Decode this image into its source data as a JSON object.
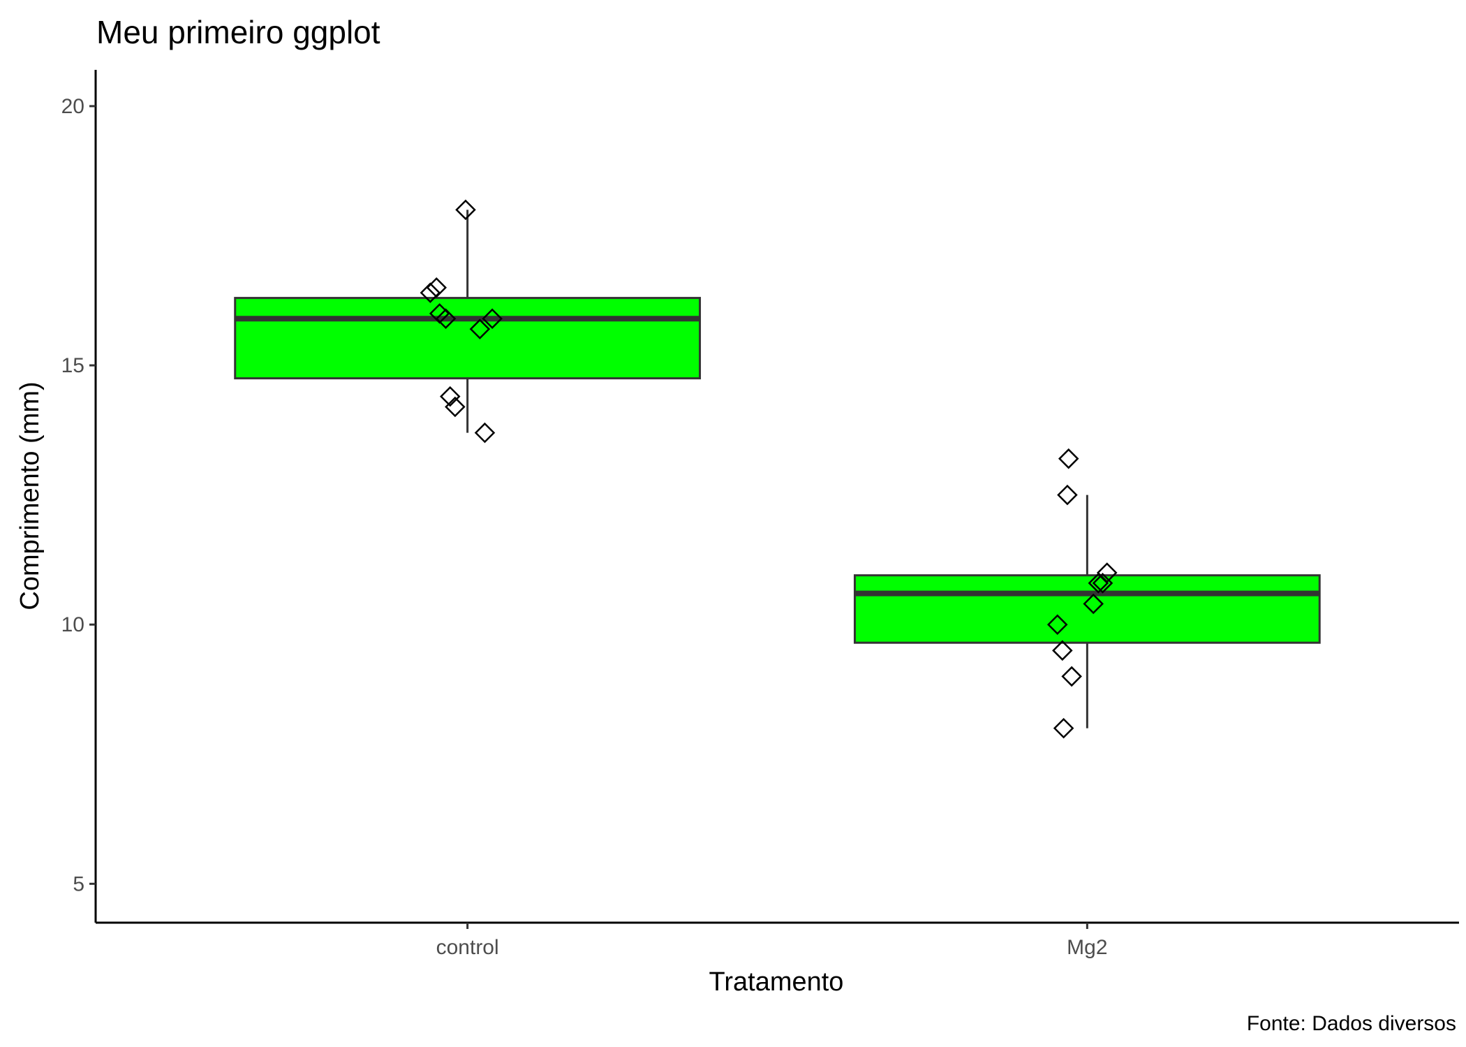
{
  "chart_data": {
    "type": "boxplot",
    "title": "Meu primeiro ggplot",
    "xlabel": "Tratamento",
    "ylabel": "Comprimento (mm)",
    "caption": "Fonte: Dados diversos",
    "ylim": [
      4.25,
      20.7
    ],
    "yticks": [
      5,
      10,
      15,
      20
    ],
    "categories": [
      "control",
      "Mg2"
    ],
    "box_fill": "#00ff00",
    "box_line": "#333333",
    "grid": false,
    "boxes": [
      {
        "category": "control",
        "lower_whisker": 13.7,
        "q1": 14.75,
        "median": 15.9,
        "q3": 16.3,
        "upper_whisker": 18.0
      },
      {
        "category": "Mg2",
        "lower_whisker": 8.0,
        "q1": 9.65,
        "median": 10.6,
        "q3": 10.95,
        "upper_whisker": 12.5
      }
    ],
    "points": [
      {
        "category": "control",
        "jitter": -0.05,
        "y": 16.5
      },
      {
        "category": "control",
        "jitter": -0.06,
        "y": 16.4
      },
      {
        "category": "control",
        "jitter": -0.045,
        "y": 16.0
      },
      {
        "category": "control",
        "jitter": -0.035,
        "y": 15.9
      },
      {
        "category": "control",
        "jitter": 0.02,
        "y": 15.7
      },
      {
        "category": "control",
        "jitter": 0.04,
        "y": 15.9
      },
      {
        "category": "control",
        "jitter": -0.003,
        "y": 18.0
      },
      {
        "category": "control",
        "jitter": -0.028,
        "y": 14.4
      },
      {
        "category": "control",
        "jitter": -0.02,
        "y": 14.2
      },
      {
        "category": "control",
        "jitter": 0.028,
        "y": 13.7
      },
      {
        "category": "Mg2",
        "jitter": -0.03,
        "y": 13.2
      },
      {
        "category": "Mg2",
        "jitter": -0.032,
        "y": 12.5
      },
      {
        "category": "Mg2",
        "jitter": 0.032,
        "y": 11.0
      },
      {
        "category": "Mg2",
        "jitter": 0.018,
        "y": 10.8
      },
      {
        "category": "Mg2",
        "jitter": 0.025,
        "y": 10.8
      },
      {
        "category": "Mg2",
        "jitter": 0.01,
        "y": 10.4
      },
      {
        "category": "Mg2",
        "jitter": -0.048,
        "y": 10.0
      },
      {
        "category": "Mg2",
        "jitter": -0.04,
        "y": 9.5
      },
      {
        "category": "Mg2",
        "jitter": -0.025,
        "y": 9.0
      },
      {
        "category": "Mg2",
        "jitter": -0.038,
        "y": 8.0
      }
    ]
  }
}
